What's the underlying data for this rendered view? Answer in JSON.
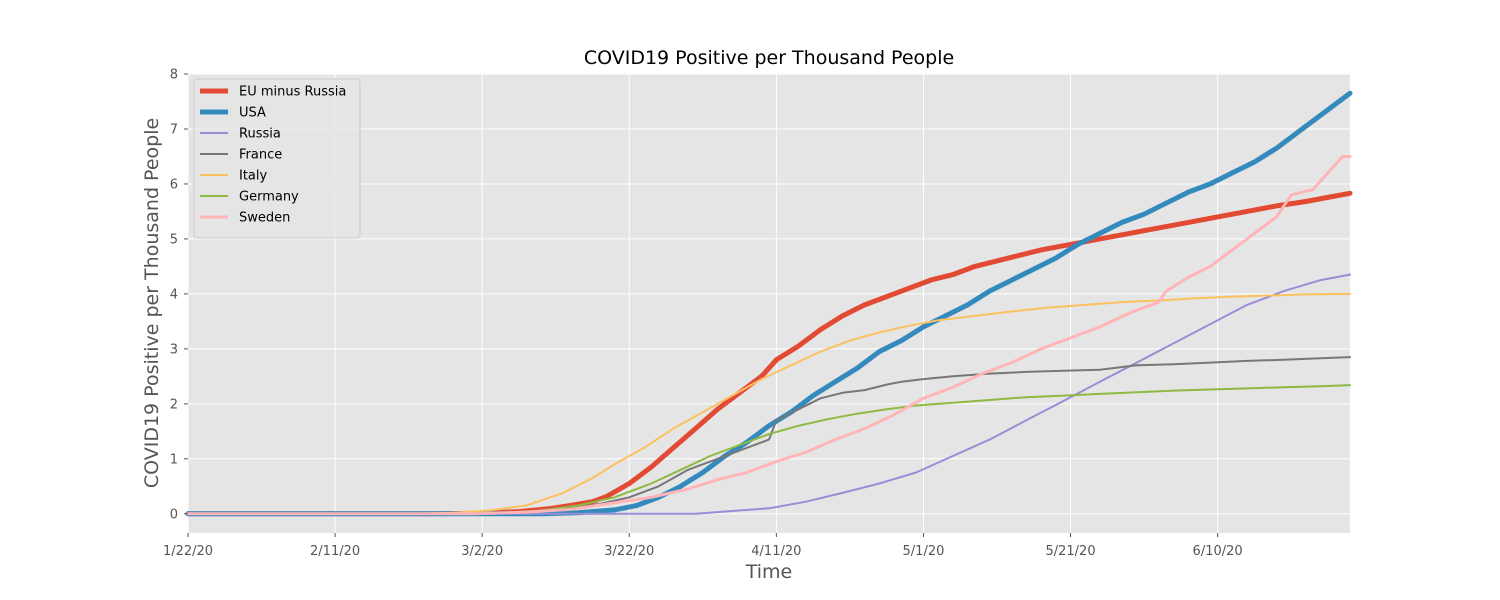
{
  "chart_data": {
    "type": "line",
    "title": "COVID19 Positive per Thousand People",
    "xlabel": "Time",
    "ylabel": "COVID19 Positive per Thousand People",
    "x_start": "1/22/20",
    "x_end": "6/28/20",
    "x_ticks": [
      {
        "date": "1/22/20",
        "label": "1/22/20"
      },
      {
        "date": "2/11/20",
        "label": "2/11/20"
      },
      {
        "date": "3/2/20",
        "label": "3/2/20"
      },
      {
        "date": "3/22/20",
        "label": "3/22/20"
      },
      {
        "date": "4/11/20",
        "label": "4/11/20"
      },
      {
        "date": "5/1/20",
        "label": "5/1/20"
      },
      {
        "date": "5/21/20",
        "label": "5/21/20"
      },
      {
        "date": "6/10/20",
        "label": "6/10/20"
      }
    ],
    "ylim": [
      -0.35,
      8
    ],
    "y_ticks": [
      0,
      1,
      2,
      3,
      4,
      5,
      6,
      7,
      8
    ],
    "grid": true,
    "legend_position": "top-left",
    "series": [
      {
        "name": "EU minus Russia",
        "color": "#E24A33",
        "width": 5,
        "points": [
          [
            "1/22/20",
            0
          ],
          [
            "2/25/20",
            0
          ],
          [
            "3/2/20",
            0.01
          ],
          [
            "3/7/20",
            0.04
          ],
          [
            "3/11/20",
            0.09
          ],
          [
            "3/14/20",
            0.15
          ],
          [
            "3/17/20",
            0.22
          ],
          [
            "3/19/20",
            0.32
          ],
          [
            "3/22/20",
            0.55
          ],
          [
            "3/25/20",
            0.85
          ],
          [
            "3/28/20",
            1.2
          ],
          [
            "3/31/20",
            1.55
          ],
          [
            "4/3/20",
            1.9
          ],
          [
            "4/6/20",
            2.2
          ],
          [
            "4/9/20",
            2.5
          ],
          [
            "4/11/20",
            2.8
          ],
          [
            "4/14/20",
            3.05
          ],
          [
            "4/17/20",
            3.35
          ],
          [
            "4/20/20",
            3.6
          ],
          [
            "4/23/20",
            3.8
          ],
          [
            "4/26/20",
            3.95
          ],
          [
            "4/29/20",
            4.1
          ],
          [
            "5/2/20",
            4.25
          ],
          [
            "5/5/20",
            4.35
          ],
          [
            "5/8/20",
            4.5
          ],
          [
            "5/11/20",
            4.6
          ],
          [
            "5/14/20",
            4.7
          ],
          [
            "5/17/20",
            4.8
          ],
          [
            "5/21/20",
            4.9
          ],
          [
            "5/25/20",
            5
          ],
          [
            "5/29/20",
            5.1
          ],
          [
            "6/2/20",
            5.2
          ],
          [
            "6/6/20",
            5.3
          ],
          [
            "6/10/20",
            5.4
          ],
          [
            "6/14/20",
            5.5
          ],
          [
            "6/18/20",
            5.6
          ],
          [
            "6/22/20",
            5.68
          ],
          [
            "6/26/20",
            5.78
          ],
          [
            "6/28/20",
            5.83
          ]
        ]
      },
      {
        "name": "USA",
        "color": "#348ABD",
        "width": 5,
        "points": [
          [
            "1/22/20",
            0
          ],
          [
            "3/10/20",
            0
          ],
          [
            "3/15/20",
            0.02
          ],
          [
            "3/20/20",
            0.07
          ],
          [
            "3/23/20",
            0.15
          ],
          [
            "3/26/20",
            0.3
          ],
          [
            "3/29/20",
            0.5
          ],
          [
            "4/1/20",
            0.75
          ],
          [
            "4/4/20",
            1.05
          ],
          [
            "4/7/20",
            1.3
          ],
          [
            "4/10/20",
            1.6
          ],
          [
            "4/13/20",
            1.85
          ],
          [
            "4/16/20",
            2.15
          ],
          [
            "4/19/20",
            2.4
          ],
          [
            "4/22/20",
            2.65
          ],
          [
            "4/25/20",
            2.95
          ],
          [
            "4/28/20",
            3.15
          ],
          [
            "5/1/20",
            3.4
          ],
          [
            "5/4/20",
            3.6
          ],
          [
            "5/7/20",
            3.8
          ],
          [
            "5/10/20",
            4.05
          ],
          [
            "5/13/20",
            4.25
          ],
          [
            "5/16/20",
            4.45
          ],
          [
            "5/19/20",
            4.65
          ],
          [
            "5/22/20",
            4.9
          ],
          [
            "5/25/20",
            5.1
          ],
          [
            "5/28/20",
            5.3
          ],
          [
            "5/31/20",
            5.45
          ],
          [
            "6/3/20",
            5.65
          ],
          [
            "6/6/20",
            5.85
          ],
          [
            "6/9/20",
            6
          ],
          [
            "6/12/20",
            6.2
          ],
          [
            "6/15/20",
            6.4
          ],
          [
            "6/18/20",
            6.65
          ],
          [
            "6/21/20",
            6.95
          ],
          [
            "6/24/20",
            7.25
          ],
          [
            "6/26/20",
            7.45
          ],
          [
            "6/28/20",
            7.65
          ]
        ]
      },
      {
        "name": "Russia",
        "color": "#988ED5",
        "width": 2,
        "points": [
          [
            "1/22/20",
            0
          ],
          [
            "3/31/20",
            0
          ],
          [
            "4/5/20",
            0.05
          ],
          [
            "4/10/20",
            0.1
          ],
          [
            "4/15/20",
            0.22
          ],
          [
            "4/20/20",
            0.38
          ],
          [
            "4/25/20",
            0.55
          ],
          [
            "4/30/20",
            0.75
          ],
          [
            "5/5/20",
            1.05
          ],
          [
            "5/10/20",
            1.35
          ],
          [
            "5/15/20",
            1.7
          ],
          [
            "5/20/20",
            2.05
          ],
          [
            "5/25/20",
            2.4
          ],
          [
            "5/30/20",
            2.75
          ],
          [
            "6/4/20",
            3.1
          ],
          [
            "6/9/20",
            3.45
          ],
          [
            "6/14/20",
            3.8
          ],
          [
            "6/19/20",
            4.05
          ],
          [
            "6/24/20",
            4.25
          ],
          [
            "6/28/20",
            4.35
          ]
        ]
      },
      {
        "name": "France",
        "color": "#777777",
        "width": 2,
        "points": [
          [
            "1/22/20",
            0
          ],
          [
            "3/1/20",
            0
          ],
          [
            "3/8/20",
            0.03
          ],
          [
            "3/13/20",
            0.08
          ],
          [
            "3/18/20",
            0.18
          ],
          [
            "3/22/20",
            0.3
          ],
          [
            "3/26/20",
            0.5
          ],
          [
            "3/30/20",
            0.8
          ],
          [
            "4/3/20",
            1
          ],
          [
            "4/7/20",
            1.2
          ],
          [
            "4/10/20",
            1.35
          ],
          [
            "4/11/20",
            1.7
          ],
          [
            "4/14/20",
            1.9
          ],
          [
            "4/17/20",
            2.1
          ],
          [
            "4/20/20",
            2.2
          ],
          [
            "4/23/20",
            2.25
          ],
          [
            "4/26/20",
            2.35
          ],
          [
            "4/28/20",
            2.4
          ],
          [
            "5/1/20",
            2.45
          ],
          [
            "5/5/20",
            2.5
          ],
          [
            "5/10/20",
            2.55
          ],
          [
            "5/15/20",
            2.58
          ],
          [
            "5/20/20",
            2.6
          ],
          [
            "5/25/20",
            2.62
          ],
          [
            "5/30/20",
            2.7
          ],
          [
            "6/4/20",
            2.72
          ],
          [
            "6/9/20",
            2.75
          ],
          [
            "6/14/20",
            2.78
          ],
          [
            "6/19/20",
            2.8
          ],
          [
            "6/24/20",
            2.83
          ],
          [
            "6/28/20",
            2.85
          ]
        ]
      },
      {
        "name": "Italy",
        "color": "#FBC15E",
        "width": 2,
        "points": [
          [
            "1/22/20",
            0
          ],
          [
            "2/22/20",
            0
          ],
          [
            "2/27/20",
            0.02
          ],
          [
            "3/3/20",
            0.06
          ],
          [
            "3/8/20",
            0.15
          ],
          [
            "3/13/20",
            0.38
          ],
          [
            "3/17/20",
            0.65
          ],
          [
            "3/20/20",
            0.9
          ],
          [
            "3/24/20",
            1.2
          ],
          [
            "3/28/20",
            1.55
          ],
          [
            "4/1/20",
            1.85
          ],
          [
            "4/5/20",
            2.15
          ],
          [
            "4/9/20",
            2.45
          ],
          [
            "4/13/20",
            2.7
          ],
          [
            "4/17/20",
            2.95
          ],
          [
            "4/21/20",
            3.15
          ],
          [
            "4/25/20",
            3.3
          ],
          [
            "4/29/20",
            3.42
          ],
          [
            "5/3/20",
            3.52
          ],
          [
            "5/8/20",
            3.6
          ],
          [
            "5/13/20",
            3.68
          ],
          [
            "5/18/20",
            3.75
          ],
          [
            "5/23/20",
            3.8
          ],
          [
            "5/28/20",
            3.85
          ],
          [
            "6/2/20",
            3.88
          ],
          [
            "6/7/20",
            3.92
          ],
          [
            "6/12/20",
            3.95
          ],
          [
            "6/17/20",
            3.97
          ],
          [
            "6/22/20",
            3.99
          ],
          [
            "6/28/20",
            4
          ]
        ]
      },
      {
        "name": "Germany",
        "color": "#8EBA42",
        "width": 2,
        "points": [
          [
            "1/22/20",
            0
          ],
          [
            "2/28/20",
            0
          ],
          [
            "3/5/20",
            0.02
          ],
          [
            "3/10/20",
            0.06
          ],
          [
            "3/15/20",
            0.15
          ],
          [
            "3/20/20",
            0.3
          ],
          [
            "3/25/20",
            0.55
          ],
          [
            "3/29/20",
            0.8
          ],
          [
            "4/2/20",
            1.05
          ],
          [
            "4/6/20",
            1.25
          ],
          [
            "4/10/20",
            1.45
          ],
          [
            "4/14/20",
            1.6
          ],
          [
            "4/18/20",
            1.72
          ],
          [
            "4/22/20",
            1.82
          ],
          [
            "4/26/20",
            1.9
          ],
          [
            "4/30/20",
            1.97
          ],
          [
            "5/5/20",
            2.02
          ],
          [
            "5/10/20",
            2.07
          ],
          [
            "5/15/20",
            2.12
          ],
          [
            "5/20/20",
            2.15
          ],
          [
            "5/25/20",
            2.18
          ],
          [
            "5/30/20",
            2.21
          ],
          [
            "6/4/20",
            2.24
          ],
          [
            "6/9/20",
            2.26
          ],
          [
            "6/14/20",
            2.28
          ],
          [
            "6/19/20",
            2.3
          ],
          [
            "6/24/20",
            2.32
          ],
          [
            "6/28/20",
            2.34
          ]
        ]
      },
      {
        "name": "Sweden",
        "color": "#FFB5B8",
        "width": 3,
        "points": [
          [
            "1/22/20",
            0
          ],
          [
            "3/1/20",
            0
          ],
          [
            "3/8/20",
            0.03
          ],
          [
            "3/14/20",
            0.08
          ],
          [
            "3/20/20",
            0.2
          ],
          [
            "3/25/20",
            0.3
          ],
          [
            "3/30/20",
            0.45
          ],
          [
            "4/3/20",
            0.62
          ],
          [
            "4/7/20",
            0.75
          ],
          [
            "4/11/20",
            0.95
          ],
          [
            "4/15/20",
            1.12
          ],
          [
            "4/19/20",
            1.35
          ],
          [
            "4/23/20",
            1.55
          ],
          [
            "4/27/20",
            1.8
          ],
          [
            "5/1/20",
            2.1
          ],
          [
            "5/5/20",
            2.3
          ],
          [
            "5/9/20",
            2.55
          ],
          [
            "5/13/20",
            2.75
          ],
          [
            "5/17/20",
            3
          ],
          [
            "5/21/20",
            3.2
          ],
          [
            "5/25/20",
            3.4
          ],
          [
            "5/29/20",
            3.65
          ],
          [
            "6/2/20",
            3.85
          ],
          [
            "6/3/20",
            4.05
          ],
          [
            "6/6/20",
            4.3
          ],
          [
            "6/9/20",
            4.5
          ],
          [
            "6/12/20",
            4.8
          ],
          [
            "6/15/20",
            5.1
          ],
          [
            "6/18/20",
            5.4
          ],
          [
            "6/20/20",
            5.8
          ],
          [
            "6/23/20",
            5.9
          ],
          [
            "6/25/20",
            6.2
          ],
          [
            "6/27/20",
            6.5
          ],
          [
            "6/28/20",
            6.5
          ]
        ]
      }
    ]
  }
}
